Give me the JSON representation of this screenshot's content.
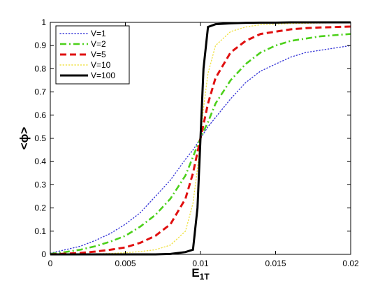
{
  "chart_data": {
    "type": "line",
    "title": "",
    "xlabel_main": "E",
    "xlabel_sub": "1T",
    "ylabel": "<ϕ>",
    "xlim": [
      0,
      0.02
    ],
    "ylim": [
      0,
      1
    ],
    "x_ticks": [
      "0",
      "0.005",
      "0.01",
      "0.015",
      "0.02"
    ],
    "y_ticks": [
      "0",
      "0.1",
      "0.2",
      "0.3",
      "0.4",
      "0.5",
      "0.6",
      "0.7",
      "0.8",
      "0.9",
      "1"
    ],
    "grid": false,
    "legend_position": "top-left",
    "x": [
      0,
      0.001,
      0.002,
      0.003,
      0.004,
      0.005,
      0.006,
      0.007,
      0.008,
      0.009,
      0.0095,
      0.0098,
      0.01,
      0.0102,
      0.0105,
      0.011,
      0.012,
      0.013,
      0.014,
      0.015,
      0.016,
      0.017,
      0.018,
      0.019,
      0.02
    ],
    "series": [
      {
        "name": "V=1",
        "color": "#3b3bd8",
        "style": "dotted",
        "values": [
          0.005,
          0.02,
          0.035,
          0.06,
          0.09,
          0.13,
          0.18,
          0.25,
          0.32,
          0.41,
          0.45,
          0.48,
          0.5,
          0.52,
          0.55,
          0.59,
          0.67,
          0.74,
          0.79,
          0.82,
          0.85,
          0.87,
          0.88,
          0.89,
          0.9
        ]
      },
      {
        "name": "V=2",
        "color": "#4cd01a",
        "style": "dashdot",
        "values": [
          0.002,
          0.01,
          0.02,
          0.035,
          0.055,
          0.08,
          0.12,
          0.17,
          0.24,
          0.34,
          0.42,
          0.47,
          0.5,
          0.53,
          0.57,
          0.65,
          0.75,
          0.82,
          0.87,
          0.9,
          0.92,
          0.93,
          0.94,
          0.945,
          0.95
        ]
      },
      {
        "name": "V=5",
        "color": "#e01010",
        "style": "dashed",
        "values": [
          0.0,
          0.003,
          0.006,
          0.012,
          0.02,
          0.03,
          0.05,
          0.08,
          0.13,
          0.24,
          0.35,
          0.44,
          0.5,
          0.56,
          0.65,
          0.76,
          0.87,
          0.92,
          0.95,
          0.96,
          0.97,
          0.975,
          0.978,
          0.98,
          0.982
        ]
      },
      {
        "name": "V=10",
        "color": "#f0e24a",
        "style": "dotted",
        "values": [
          0.0,
          0.0,
          0.001,
          0.002,
          0.004,
          0.007,
          0.012,
          0.02,
          0.04,
          0.1,
          0.22,
          0.37,
          0.5,
          0.63,
          0.78,
          0.9,
          0.96,
          0.98,
          0.99,
          0.992,
          0.995,
          0.996,
          0.997,
          0.998,
          0.999
        ]
      },
      {
        "name": "V=100",
        "color": "#000000",
        "style": "solid",
        "values": [
          0.0,
          0.0,
          0.0,
          0.0,
          0.0,
          0.0,
          0.0,
          0.0,
          0.002,
          0.01,
          0.02,
          0.2,
          0.5,
          0.8,
          0.98,
          0.992,
          0.996,
          0.998,
          0.999,
          0.999,
          1.0,
          1.0,
          1.0,
          1.0,
          1.0
        ]
      }
    ]
  }
}
